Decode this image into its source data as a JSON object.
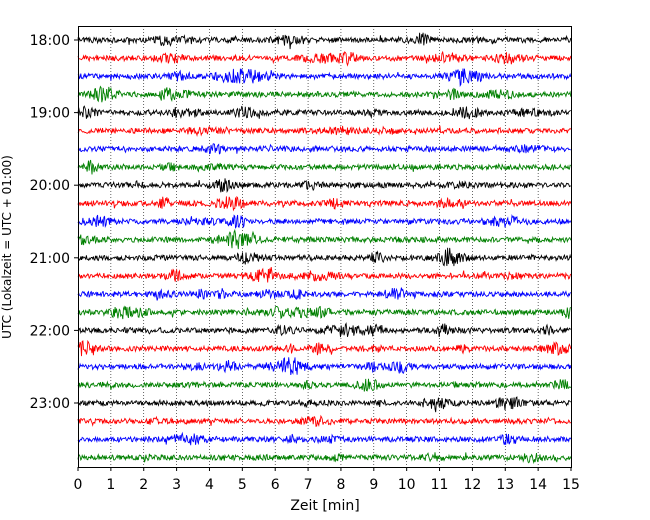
{
  "chart_data": {
    "type": "line",
    "title": "",
    "xlabel": "Zeit  [min]",
    "ylabel": "UTC (Lokalzeit = UTC + 01:00)",
    "xlim": [
      0,
      15
    ],
    "x_ticks": [
      "0",
      "1",
      "2",
      "3",
      "4",
      "5",
      "6",
      "7",
      "8",
      "9",
      "10",
      "11",
      "12",
      "13",
      "14",
      "15"
    ],
    "y_ticks": [
      "18:00",
      "19:00",
      "20:00",
      "21:00",
      "22:00",
      "23:00"
    ],
    "grid": "vertical dotted at each minute",
    "legend": "none",
    "trace_colors": [
      "#000000",
      "#ff0000",
      "#0000ff",
      "#008000"
    ],
    "traces": [
      {
        "start": "18:00",
        "color": "#000000"
      },
      {
        "start": "18:15",
        "color": "#ff0000"
      },
      {
        "start": "18:30",
        "color": "#0000ff"
      },
      {
        "start": "18:45",
        "color": "#008000"
      },
      {
        "start": "19:00",
        "color": "#000000"
      },
      {
        "start": "19:15",
        "color": "#ff0000"
      },
      {
        "start": "19:30",
        "color": "#0000ff"
      },
      {
        "start": "19:45",
        "color": "#008000"
      },
      {
        "start": "20:00",
        "color": "#000000"
      },
      {
        "start": "20:15",
        "color": "#ff0000"
      },
      {
        "start": "20:30",
        "color": "#0000ff"
      },
      {
        "start": "20:45",
        "color": "#008000"
      },
      {
        "start": "21:00",
        "color": "#000000"
      },
      {
        "start": "21:15",
        "color": "#ff0000"
      },
      {
        "start": "21:30",
        "color": "#0000ff"
      },
      {
        "start": "21:45",
        "color": "#008000"
      },
      {
        "start": "22:00",
        "color": "#000000"
      },
      {
        "start": "22:15",
        "color": "#ff0000"
      },
      {
        "start": "22:30",
        "color": "#0000ff"
      },
      {
        "start": "22:45",
        "color": "#008000"
      },
      {
        "start": "23:00",
        "color": "#000000"
      },
      {
        "start": "23:15",
        "color": "#ff0000"
      },
      {
        "start": "23:30",
        "color": "#0000ff"
      },
      {
        "start": "23:45",
        "color": "#008000"
      }
    ]
  }
}
